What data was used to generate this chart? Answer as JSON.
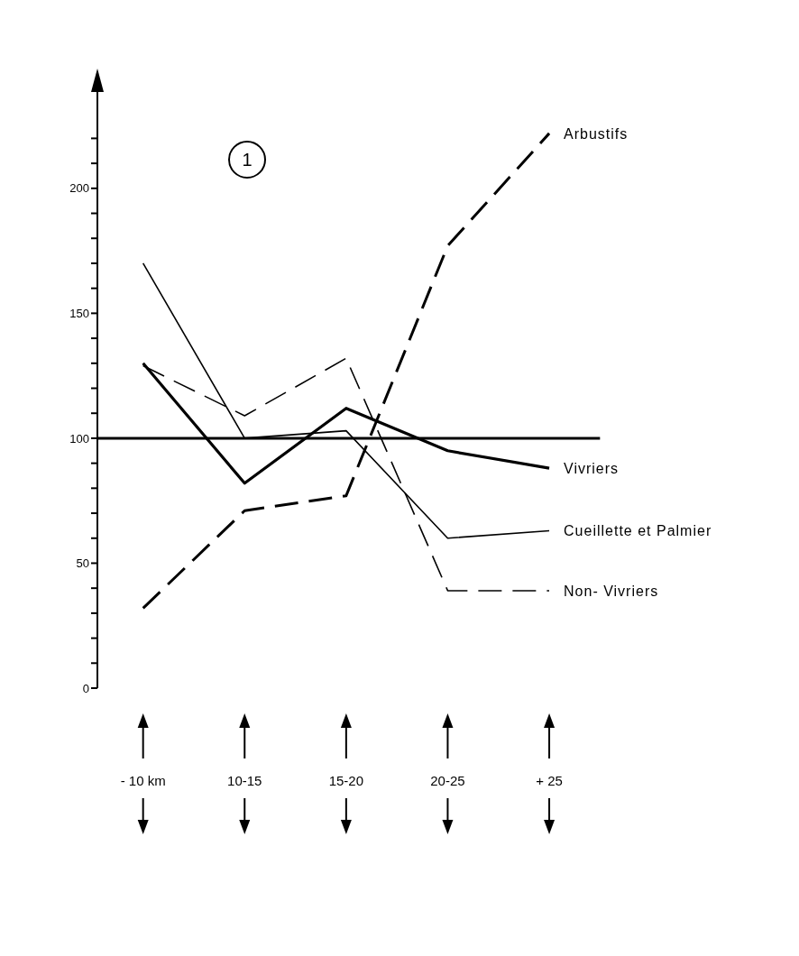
{
  "chart_data": {
    "type": "line",
    "categories": [
      "- 10 km",
      "10-15",
      "15-20",
      "20-25",
      "+ 25"
    ],
    "series": [
      {
        "name": "Arbustifs",
        "color": "#000000",
        "line_style": "dashed",
        "values": [
          32,
          71,
          77,
          177,
          222
        ]
      },
      {
        "name": "Vivriers",
        "color": "#000000",
        "line_style": "solid",
        "values": [
          130,
          82,
          112,
          95,
          88
        ]
      },
      {
        "name": "Cueillette et Palmier",
        "color": "#000000",
        "line_style": "solid",
        "values": [
          170,
          100,
          103,
          60,
          63
        ]
      },
      {
        "name": "Non- Vivriers",
        "color": "#000000",
        "line_style": "dashed",
        "values": [
          129,
          109,
          132,
          39,
          39
        ]
      }
    ],
    "ylim": [
      0,
      240
    ],
    "yticks": [
      {
        "value": 0,
        "label": "0"
      },
      {
        "value": 10,
        "label": null
      },
      {
        "value": 20,
        "label": null
      },
      {
        "value": 30,
        "label": null
      },
      {
        "value": 40,
        "label": null
      },
      {
        "value": 50,
        "label": "50"
      },
      {
        "value": 60,
        "label": null
      },
      {
        "value": 70,
        "label": null
      },
      {
        "value": 80,
        "label": null
      },
      {
        "value": 90,
        "label": null
      },
      {
        "value": 100,
        "label": "100"
      },
      {
        "value": 110,
        "label": null
      },
      {
        "value": 120,
        "label": null
      },
      {
        "value": 130,
        "label": null
      },
      {
        "value": 140,
        "label": null
      },
      {
        "value": 150,
        "label": "150"
      },
      {
        "value": 160,
        "label": null
      },
      {
        "value": 170,
        "label": null
      },
      {
        "value": 180,
        "label": null
      },
      {
        "value": 190,
        "label": null
      },
      {
        "value": 200,
        "label": "200"
      },
      {
        "value": 210,
        "label": null
      },
      {
        "value": 220,
        "label": null
      }
    ],
    "ref_lines": [
      {
        "axis": "y",
        "value": 100,
        "color": "#000000"
      }
    ],
    "annotations": [
      "1"
    ],
    "grid": false,
    "legend": false,
    "marker": "none"
  }
}
